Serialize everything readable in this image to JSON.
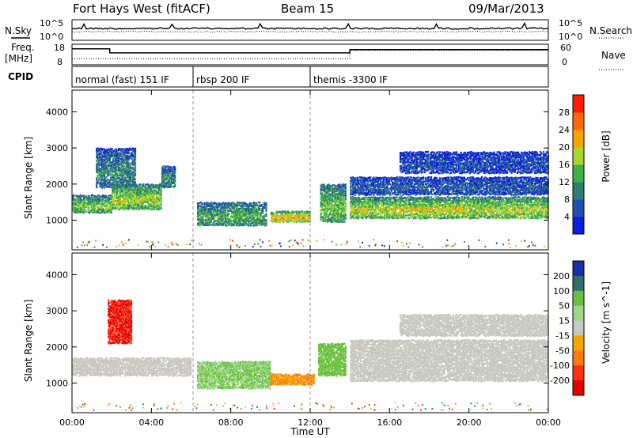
{
  "header": {
    "title": "Fort Hays West (fitACF)",
    "beam": "Beam 15",
    "date": "09/Mar/2013"
  },
  "strip_labels": {
    "nsky": "N.Sky",
    "nsky_ticks": [
      "10^5",
      "10^0"
    ],
    "nsearch": "N.Search",
    "nsearch_ticks": [
      "10^5",
      "10^0"
    ],
    "freq": "Freq.",
    "freq_unit": "[MHz]",
    "freq_ticks": [
      "18",
      "8"
    ],
    "nave": "Nave",
    "nave_ticks": [
      "60",
      "0"
    ],
    "cpid": "CPID"
  },
  "cpid_segments": [
    {
      "start": 0,
      "end": 6.1,
      "label": "normal (fast) 151 IF"
    },
    {
      "start": 6.1,
      "end": 12.0,
      "label": "rbsp 200 IF"
    },
    {
      "start": 12.0,
      "end": 24.0,
      "label": "themis -3300 IF"
    }
  ],
  "chart_data": [
    {
      "type": "heatmap",
      "panel": "power",
      "ylabel": "Slant Range [km]",
      "xlabel": "",
      "xlim": [
        0,
        24
      ],
      "ylim": [
        180,
        4600
      ],
      "y_ticks": [
        1000,
        2000,
        3000,
        4000
      ],
      "colorbar": {
        "label": "Power [dB]",
        "range": [
          0,
          32
        ],
        "ticks": [
          4,
          8,
          12,
          16,
          20,
          24,
          28
        ],
        "colors": [
          "#0b1fd6",
          "#1f4fb0",
          "#2e7d6e",
          "#3fb04a",
          "#a8d62a",
          "#f5a500",
          "#ff6a00",
          "#ff1a00"
        ]
      },
      "echo_bands": [
        {
          "start": 0.0,
          "end": 2.0,
          "range_low": 1200,
          "range_high": 1700,
          "power": 14
        },
        {
          "start": 1.2,
          "end": 3.2,
          "range_low": 1900,
          "range_high": 3000,
          "power": 9
        },
        {
          "start": 2.0,
          "end": 4.5,
          "range_low": 1300,
          "range_high": 2000,
          "power": 16
        },
        {
          "start": 4.5,
          "end": 5.2,
          "range_low": 1900,
          "range_high": 2500,
          "power": 10
        },
        {
          "start": 6.3,
          "end": 9.8,
          "range_low": 850,
          "range_high": 1500,
          "power": 12
        },
        {
          "start": 10.0,
          "end": 12.0,
          "range_low": 950,
          "range_high": 1250,
          "power": 20
        },
        {
          "start": 12.5,
          "end": 13.8,
          "range_low": 950,
          "range_high": 2000,
          "power": 14
        },
        {
          "start": 14.0,
          "end": 24.0,
          "range_low": 1050,
          "range_high": 1650,
          "power": 17
        },
        {
          "start": 14.0,
          "end": 24.0,
          "range_low": 1700,
          "range_high": 2200,
          "power": 6
        },
        {
          "start": 16.5,
          "end": 24.0,
          "range_low": 2300,
          "range_high": 2900,
          "power": 5
        }
      ]
    },
    {
      "type": "heatmap",
      "panel": "velocity",
      "ylabel": "Slant Range [km]",
      "xlabel": "Time UT",
      "xlim": [
        0,
        24
      ],
      "ylim": [
        180,
        4600
      ],
      "y_ticks": [
        1000,
        2000,
        3000,
        4000
      ],
      "x_ticks": [
        "00:00",
        "04:00",
        "08:00",
        "12:00",
        "16:00",
        "20:00",
        "00:00"
      ],
      "colorbar": {
        "label": "Velocity [m s^-1]",
        "ticks": [
          "200",
          "100",
          "50",
          "15",
          "-15",
          "-50",
          "-100",
          "-200"
        ],
        "colors": [
          "#1a2ea8",
          "#2e6f6a",
          "#6cc040",
          "#9fd68a",
          "#c8c8c0",
          "#f5a500",
          "#ff7a10",
          "#ff3010",
          "#e00000"
        ]
      },
      "echo_bands": [
        {
          "start": 0.0,
          "end": 6.0,
          "range_low": 1200,
          "range_high": 1700,
          "velocity": 0
        },
        {
          "start": 1.8,
          "end": 3.0,
          "range_low": 2100,
          "range_high": 3300,
          "velocity": -200
        },
        {
          "start": 6.3,
          "end": 10.0,
          "range_low": 850,
          "range_high": 1600,
          "velocity": 50
        },
        {
          "start": 10.0,
          "end": 12.2,
          "range_low": 950,
          "range_high": 1250,
          "velocity": -50
        },
        {
          "start": 12.4,
          "end": 13.8,
          "range_low": 1200,
          "range_high": 2100,
          "velocity": 60
        },
        {
          "start": 14.0,
          "end": 24.0,
          "range_low": 1050,
          "range_high": 1700,
          "velocity": 0
        },
        {
          "start": 14.0,
          "end": 24.0,
          "range_low": 1700,
          "range_high": 2200,
          "velocity": 0
        },
        {
          "start": 16.5,
          "end": 24.0,
          "range_low": 2300,
          "range_high": 2900,
          "velocity": 0
        }
      ]
    }
  ]
}
